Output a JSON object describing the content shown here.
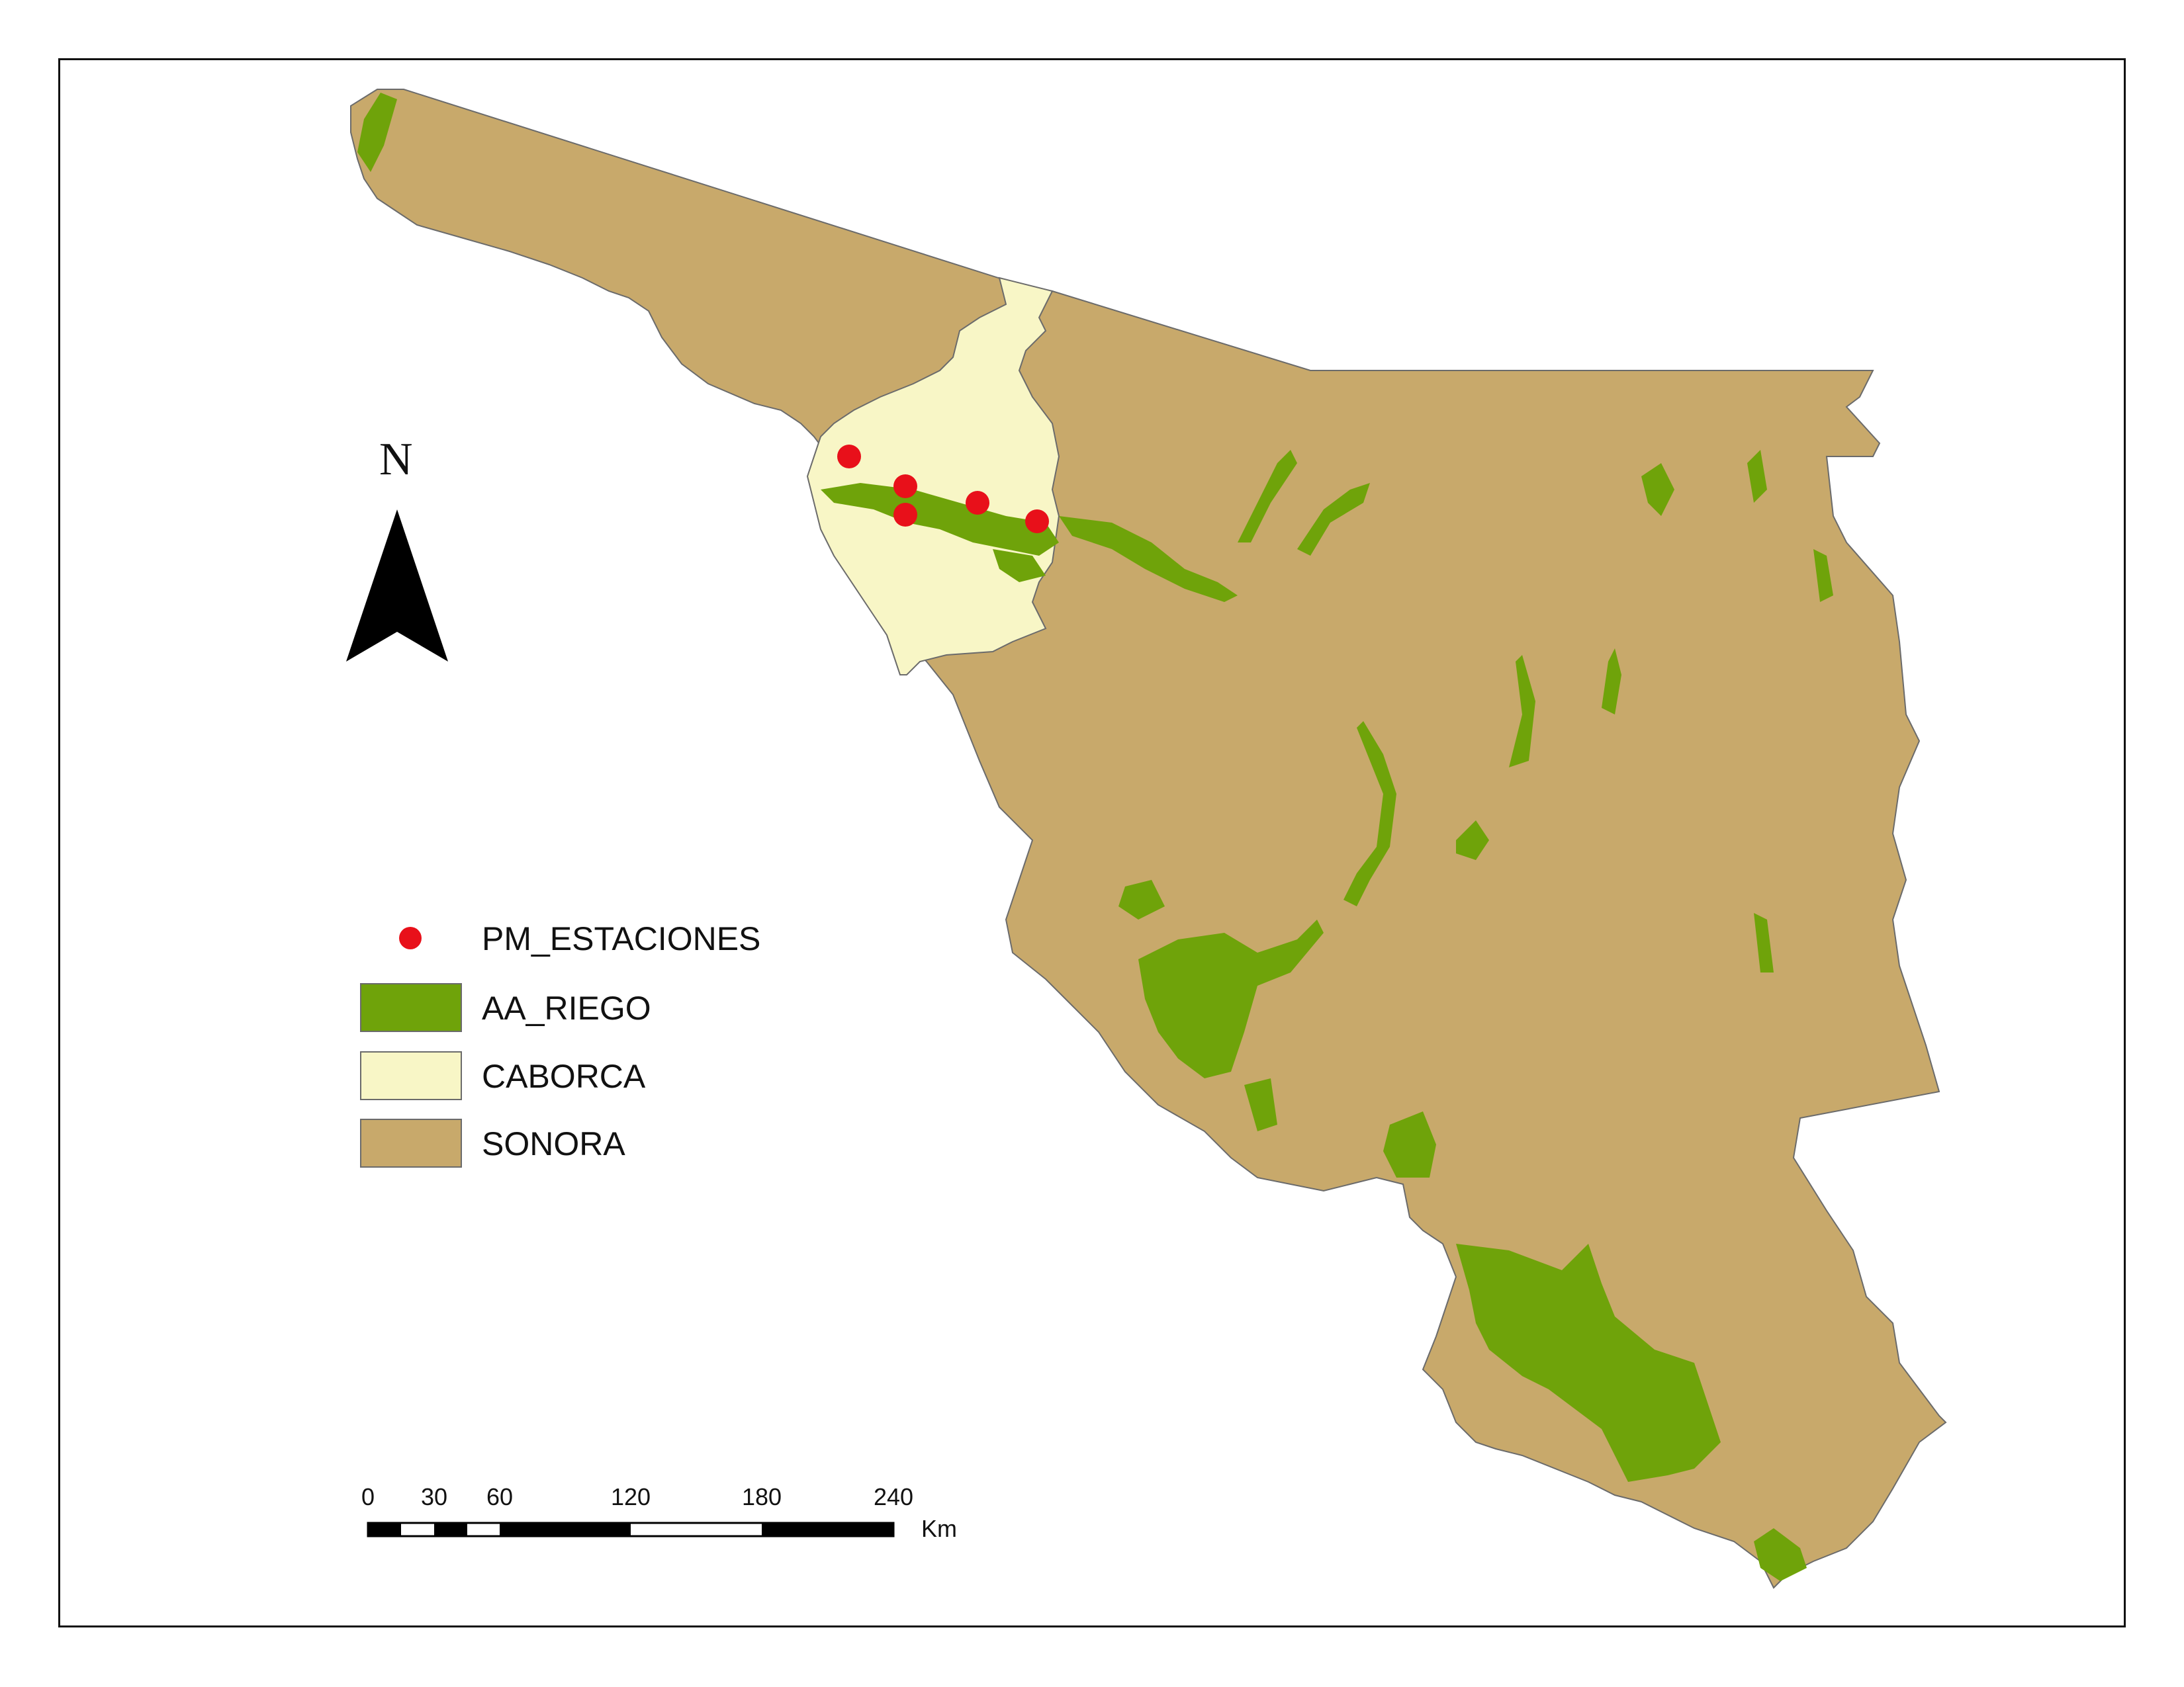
{
  "north_arrow": {
    "letter": "N"
  },
  "legend": {
    "items": [
      {
        "label": "PM_ESTACIONES",
        "symbol": "point",
        "color": "#e8101a"
      },
      {
        "label": "AA_RIEGO",
        "symbol": "patch",
        "color": "#6fa30a"
      },
      {
        "label": "CABORCA",
        "symbol": "patch",
        "color": "#f8f6c6"
      },
      {
        "label": "SONORA",
        "symbol": "patch",
        "color": "#c8a96b"
      }
    ]
  },
  "scale_bar": {
    "ticks": [
      "0",
      "30",
      "60",
      "120",
      "180",
      "240"
    ],
    "unit": "Km"
  },
  "colors": {
    "sonora": "#c8a96b",
    "caborca": "#f8f6c6",
    "irrigation": "#6fa30a",
    "station": "#e8101a",
    "outline": "#6b6b6b"
  }
}
